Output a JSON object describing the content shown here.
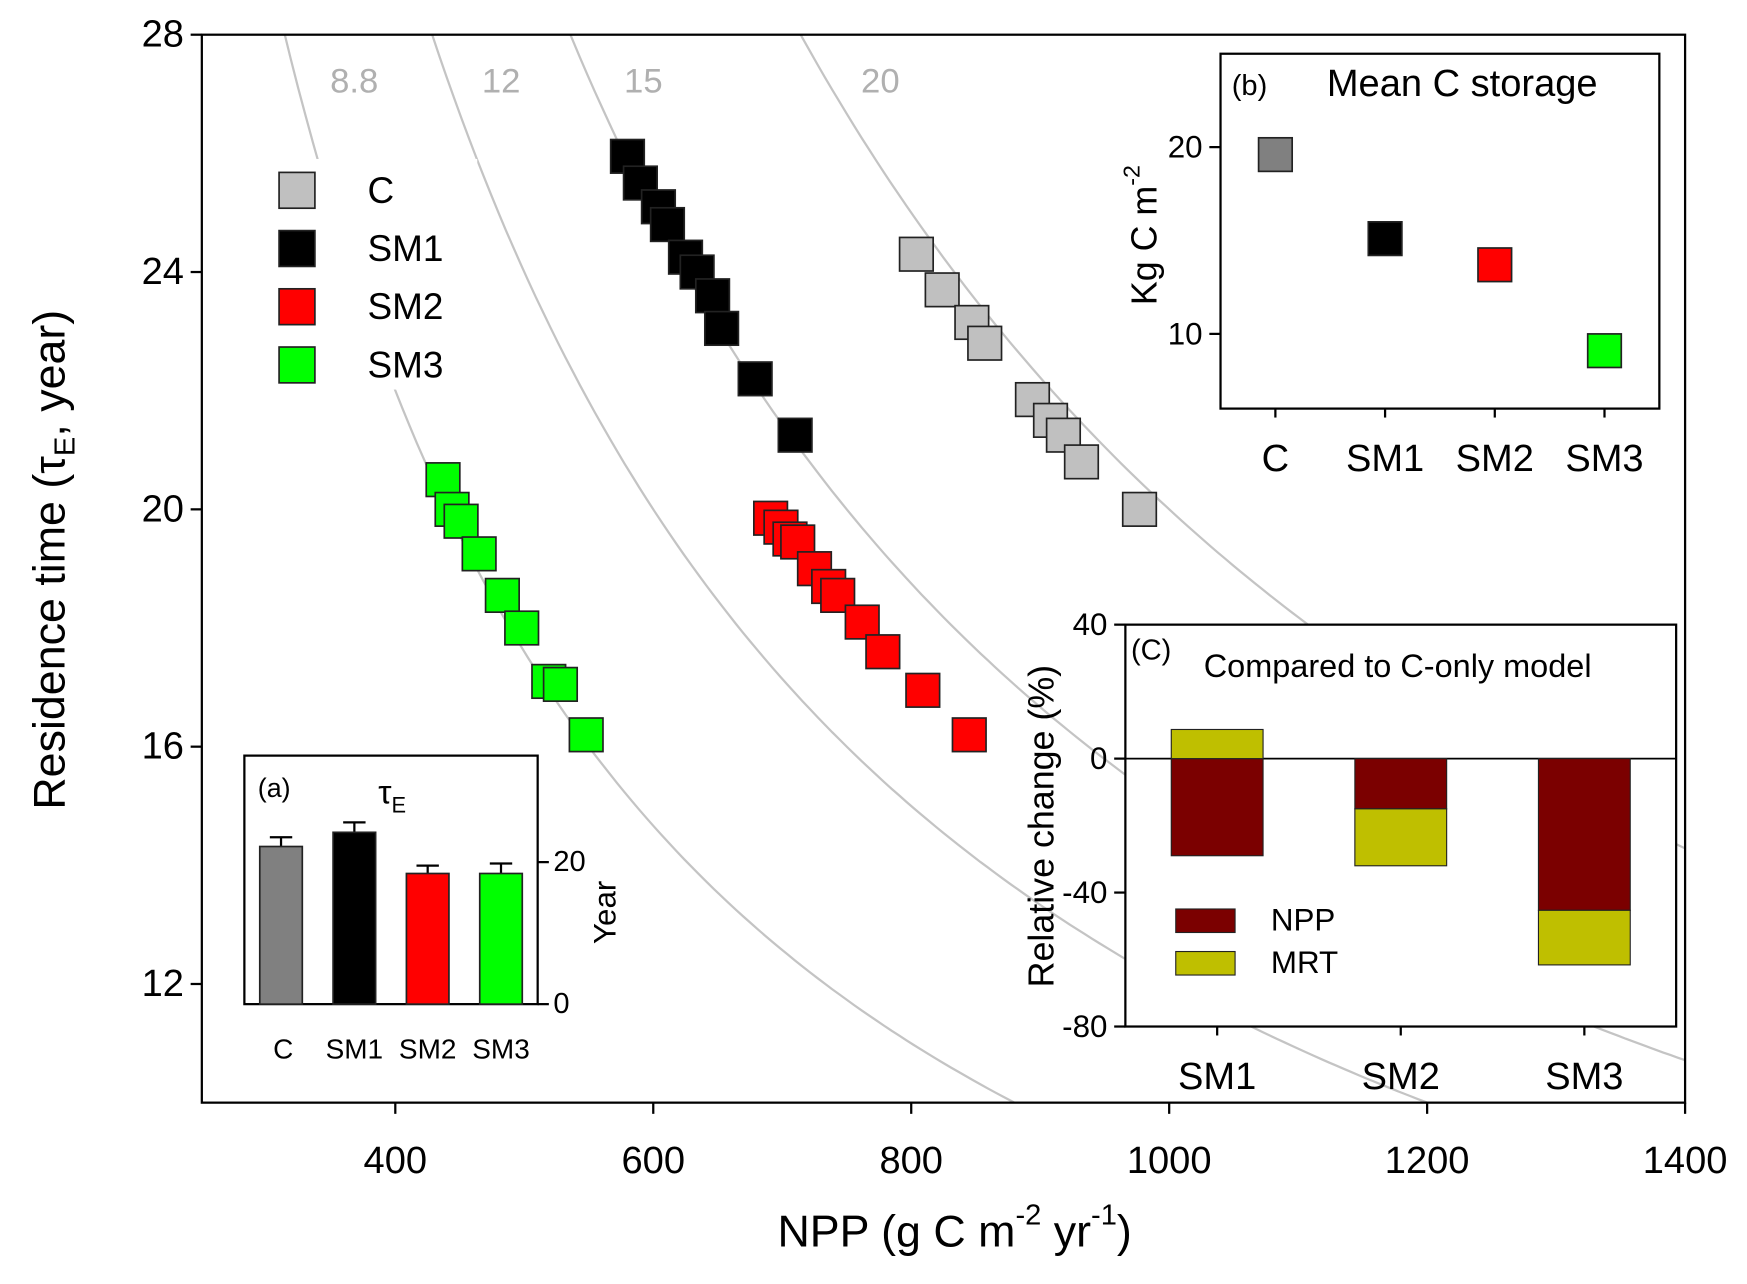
{
  "chart_data": [
    {
      "type": "scatter",
      "xlabel_parts": [
        {
          "text": "NPP (g C m"
        },
        {
          "text": "-2",
          "sup": true
        },
        {
          "text": " yr"
        },
        {
          "text": "-1",
          "sup": true
        },
        {
          "text": ")"
        }
      ],
      "ylabel_parts": [
        {
          "text": "Residence time ("
        },
        {
          "text": "τ"
        },
        {
          "text": "E",
          "sub": true
        },
        {
          "text": ", year)"
        }
      ],
      "xlim": [
        250,
        1400
      ],
      "xticks": [
        400,
        600,
        800,
        1000,
        1200,
        1400
      ],
      "ylim": [
        10,
        28
      ],
      "yticks": [
        12,
        16,
        20,
        24,
        28
      ],
      "isolines": {
        "values": [
          8.8,
          12,
          15,
          20
        ],
        "color": "#c4c4c4"
      },
      "series": [
        {
          "name": "C",
          "color": "#c0c0c0",
          "x": [
            804,
            824,
            847,
            857,
            894,
            908,
            918,
            932,
            977
          ],
          "values": [
            24.3,
            23.7,
            23.15,
            22.8,
            21.85,
            21.5,
            21.25,
            20.8,
            20.0
          ]
        },
        {
          "name": "SM1",
          "color": "#000000",
          "x": [
            580,
            590,
            604,
            611,
            625,
            634,
            646,
            653,
            679,
            710
          ],
          "values": [
            25.95,
            25.5,
            25.1,
            24.8,
            24.25,
            24.0,
            23.6,
            23.05,
            22.2,
            21.25
          ]
        },
        {
          "name": "SM2",
          "color": "#ff0000",
          "x": [
            691,
            699,
            706,
            712,
            725,
            736,
            743,
            762,
            778,
            809,
            845
          ],
          "values": [
            19.85,
            19.7,
            19.5,
            19.45,
            19.0,
            18.7,
            18.55,
            18.1,
            17.6,
            16.95,
            16.2
          ]
        },
        {
          "name": "SM3",
          "color": "#00ff00",
          "x": [
            437,
            444,
            451,
            465,
            483,
            498,
            519,
            528,
            548
          ],
          "values": [
            20.5,
            20.0,
            19.8,
            19.25,
            18.55,
            18.0,
            17.1,
            17.05,
            16.2
          ]
        }
      ]
    },
    {
      "type": "bar",
      "label": "(a)",
      "title_parts": [
        {
          "text": "τ"
        },
        {
          "text": "E",
          "sub": true
        }
      ],
      "ylabel": "Year",
      "yaxis": "right",
      "categories": [
        "C",
        "SM1",
        "SM2",
        "SM3"
      ],
      "values": [
        22.2,
        24.2,
        18.4,
        18.4
      ],
      "errors": [
        1.3,
        1.4,
        1.1,
        1.4
      ],
      "colors": [
        "#808080",
        "#000000",
        "#ff0000",
        "#00ff00"
      ],
      "ylim": [
        0,
        35
      ],
      "yticks": [
        0,
        20
      ]
    },
    {
      "type": "dot",
      "label": "(b)",
      "title": "Mean C storage",
      "ylabel_parts": [
        {
          "text": "Kg C m"
        },
        {
          "text": "-2",
          "sup": true
        }
      ],
      "categories": [
        "C",
        "SM1",
        "SM2",
        "SM3"
      ],
      "values": [
        19.6,
        15.1,
        13.7,
        9.1
      ],
      "colors": [
        "#808080",
        "#000000",
        "#ff0000",
        "#00ff00"
      ],
      "ylim": [
        6,
        25
      ],
      "yticks": [
        10,
        20
      ]
    },
    {
      "type": "bar",
      "stacked": true,
      "label": "(C)",
      "title": "Compared to C-only model",
      "ylabel": "Relative change (%)",
      "categories": [
        "SM1",
        "SM2",
        "SM3"
      ],
      "series": [
        {
          "name": "NPP",
          "color": "#7b0000",
          "values": [
            -29,
            -15,
            -45.3
          ]
        },
        {
          "name": "MRT",
          "color": "#bfbf00",
          "values": [
            8.7,
            -17,
            -16.3
          ]
        }
      ],
      "ylim": [
        -80,
        40
      ],
      "yticks": [
        -80,
        -40,
        0,
        40
      ]
    }
  ]
}
